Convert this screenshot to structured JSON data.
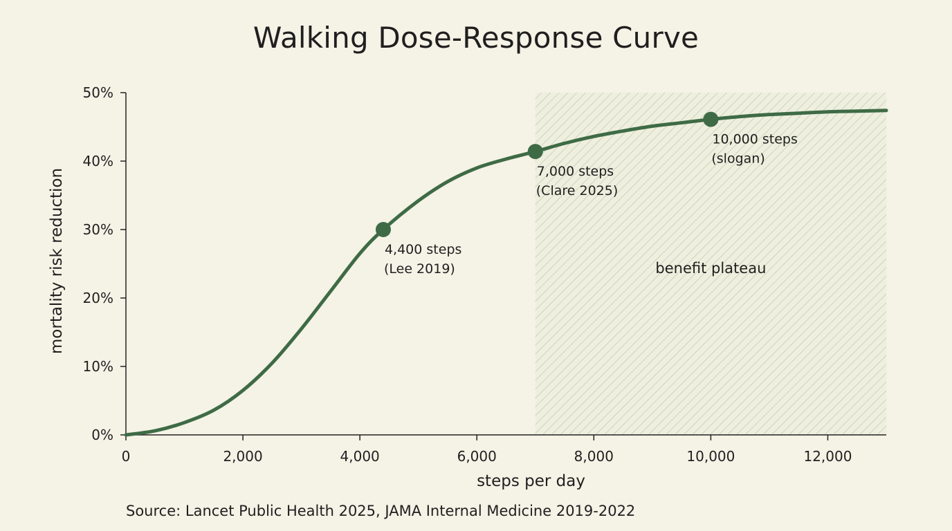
{
  "title": "Walking Dose-Response Curve",
  "source": "Source: Lancet Public Health 2025, JAMA Internal Medicine 2019-2022",
  "colors": {
    "background": "#f5f2e6",
    "curve": "#3e6b45",
    "marker": "#3e6b45",
    "hatch": "#b9c7a6",
    "plateau_fill": "#eaecd8",
    "axis": "#222222",
    "text": "#1f1f1f"
  },
  "chart_data": {
    "type": "line",
    "title": "Walking Dose-Response Curve",
    "xlabel": "steps per day",
    "ylabel": "mortality risk reduction",
    "xlim": [
      0,
      13000
    ],
    "ylim": [
      0,
      50
    ],
    "x_ticks": [
      0,
      2000,
      4000,
      6000,
      8000,
      10000,
      12000
    ],
    "x_tick_labels": [
      "0",
      "2,000",
      "4,000",
      "6,000",
      "8,000",
      "10,000",
      "12,000"
    ],
    "y_ticks": [
      0,
      10,
      20,
      30,
      40,
      50
    ],
    "y_tick_labels": [
      "0%",
      "10%",
      "20%",
      "30%",
      "40%",
      "50%"
    ],
    "grid": false,
    "series": [
      {
        "x": [
          0,
          500,
          1000,
          1500,
          2000,
          2500,
          3000,
          3500,
          4000,
          4400,
          5000,
          5500,
          6000,
          6500,
          7000,
          7500,
          8000,
          8500,
          9000,
          9500,
          10000,
          10500,
          11000,
          11500,
          12000,
          12500,
          13000
        ],
        "y": [
          0,
          0.6,
          1.8,
          3.6,
          6.5,
          10.5,
          15.5,
          21,
          26.5,
          30,
          34.2,
          37,
          39,
          40.3,
          41.4,
          42.6,
          43.6,
          44.4,
          45.1,
          45.6,
          46.1,
          46.5,
          46.8,
          47,
          47.2,
          47.3,
          47.4
        ]
      }
    ],
    "markers": [
      {
        "x": 4400,
        "y": 30,
        "label": "4,400 steps",
        "sublabel": "(Lee 2019)"
      },
      {
        "x": 7000,
        "y": 41.4,
        "label": "7,000 steps",
        "sublabel": "(Clare 2025)"
      },
      {
        "x": 10000,
        "y": 46.1,
        "label": "10,000 steps",
        "sublabel": "(slogan)"
      }
    ],
    "shaded_region": {
      "x_start": 7000,
      "x_end": 13000,
      "label": "benefit plateau"
    }
  }
}
